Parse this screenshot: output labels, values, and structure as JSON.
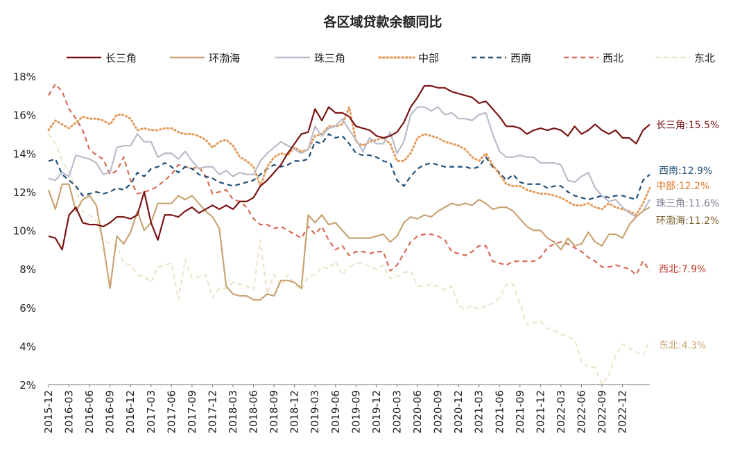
{
  "chart_data": {
    "type": "line",
    "title": "各区域贷款余额同比",
    "xlabel": "",
    "ylabel": "",
    "ylim": [
      2,
      18
    ],
    "y_ticks": [
      "2%",
      "4%",
      "6%",
      "8%",
      "10%",
      "12%",
      "14%",
      "16%",
      "18%"
    ],
    "x_ticks": [
      "2015-12",
      "2016-03",
      "2016-06",
      "2016-09",
      "2016-12",
      "2017-03",
      "2017-06",
      "2017-09",
      "2017-12",
      "2018-03",
      "2018-06",
      "2018-09",
      "2018-12",
      "2019-03",
      "2019-06",
      "2019-09",
      "2019-12",
      "2020-03",
      "2020-06",
      "2020-09",
      "2020-12",
      "2021-03",
      "2021-06",
      "2021-09",
      "2021-12",
      "2022-03",
      "2022-06",
      "2022-09",
      "2022-12"
    ],
    "x_start": "2015-12",
    "x_end": "2023-03",
    "legend_position": "top",
    "series": [
      {
        "name": "长三角",
        "color": "#7a1414",
        "dash": "solid",
        "end_label": "长三角:15.5%",
        "end_label_color": "#7a1414",
        "values": [
          9.7,
          9.6,
          9.0,
          10.8,
          11.2,
          10.4,
          10.3,
          10.3,
          10.2,
          10.4,
          10.7,
          10.7,
          10.6,
          10.8,
          12.0,
          10.4,
          9.5,
          10.8,
          10.8,
          10.7,
          11.0,
          11.2,
          10.9,
          11.1,
          11.3,
          11.1,
          11.3,
          11.1,
          11.5,
          11.5,
          11.7,
          12.3,
          12.6,
          13.0,
          13.4,
          14.0,
          14.5,
          15.0,
          15.1,
          16.3,
          15.7,
          16.4,
          16.1,
          16.1,
          15.9,
          15.4,
          15.3,
          15.2,
          14.9,
          14.8,
          14.9,
          15.1,
          15.6,
          16.4,
          16.9,
          17.5,
          17.5,
          17.4,
          17.4,
          17.2,
          17.1,
          17.0,
          16.9,
          16.6,
          16.7,
          16.3,
          15.9,
          15.4,
          15.4,
          15.3,
          15.0,
          15.2,
          15.3,
          15.2,
          15.3,
          15.2,
          14.9,
          15.4,
          15.0,
          15.2,
          15.5,
          15.2,
          15.0,
          15.2,
          14.8,
          14.8,
          14.5,
          15.2,
          15.5
        ]
      },
      {
        "name": "环渤海",
        "color": "#c8a473",
        "dash": "solid",
        "end_label": "环渤海:11.2%",
        "end_label_color": "#7a5c2e",
        "values": [
          12.1,
          11.1,
          12.4,
          12.4,
          11.0,
          11.6,
          11.8,
          11.3,
          9.3,
          7.0,
          9.7,
          9.3,
          9.9,
          11.0,
          10.0,
          10.4,
          11.4,
          11.4,
          11.4,
          11.8,
          11.6,
          11.8,
          11.4,
          11.0,
          10.7,
          10.1,
          7.1,
          6.7,
          6.6,
          6.6,
          6.4,
          6.4,
          6.7,
          6.6,
          7.4,
          7.4,
          7.3,
          7.0,
          10.8,
          10.4,
          10.8,
          10.3,
          10.4,
          10.0,
          9.6,
          9.6,
          9.6,
          9.6,
          9.7,
          9.8,
          9.4,
          9.7,
          10.4,
          10.7,
          10.6,
          10.8,
          10.7,
          11.0,
          11.2,
          11.4,
          11.3,
          11.4,
          11.3,
          11.6,
          11.4,
          11.1,
          11.2,
          11.2,
          11.0,
          10.6,
          10.2,
          10.0,
          10.0,
          9.6,
          9.4,
          9.0,
          9.6,
          9.2,
          9.3,
          9.9,
          9.4,
          9.2,
          9.8,
          9.8,
          9.6,
          10.3,
          10.7,
          11.0,
          11.2
        ]
      },
      {
        "name": "珠三角",
        "color": "#b9bcc9",
        "dash": "solid",
        "end_label": "珠三角:11.6%",
        "end_label_color": "#7c7f95",
        "values": [
          12.7,
          12.6,
          13.0,
          12.8,
          13.9,
          13.8,
          13.7,
          13.5,
          12.9,
          13.0,
          14.3,
          14.4,
          14.4,
          15.0,
          14.6,
          14.6,
          13.8,
          14.0,
          14.0,
          13.7,
          14.1,
          13.6,
          13.2,
          13.3,
          13.3,
          12.9,
          13.1,
          12.8,
          13.0,
          12.9,
          12.9,
          13.6,
          14.0,
          14.3,
          14.6,
          14.4,
          14.2,
          14.0,
          14.2,
          15.4,
          14.9,
          15.3,
          15.4,
          15.8,
          15.2,
          14.7,
          14.1,
          14.8,
          14.5,
          14.5,
          15.1,
          14.0,
          14.6,
          16.0,
          16.4,
          16.4,
          16.2,
          16.4,
          16.0,
          16.1,
          15.8,
          15.8,
          15.7,
          16.0,
          16.1,
          15.0,
          14.1,
          13.8,
          13.8,
          13.9,
          13.8,
          13.8,
          13.5,
          13.5,
          13.5,
          13.4,
          12.6,
          12.5,
          12.8,
          13.0,
          12.2,
          11.8,
          11.5,
          11.6,
          11.2,
          10.9,
          10.7,
          11.0,
          11.6
        ]
      },
      {
        "name": "中部",
        "color": "#e49a5a",
        "dash": "dotted",
        "end_label": "中部:12.2%",
        "end_label_color": "#e0792c",
        "values": [
          15.2,
          15.7,
          15.5,
          15.3,
          15.6,
          15.9,
          15.8,
          15.8,
          15.7,
          15.5,
          16.0,
          16.0,
          15.8,
          15.2,
          15.3,
          15.2,
          15.2,
          15.3,
          15.3,
          15.1,
          15.0,
          15.0,
          14.9,
          14.7,
          14.3,
          14.6,
          14.7,
          14.4,
          13.8,
          13.6,
          13.3,
          12.3,
          13.3,
          13.8,
          14.0,
          13.9,
          14.3,
          14.1,
          14.2,
          14.9,
          15.0,
          15.4,
          15.4,
          15.5,
          16.4,
          14.6,
          14.4,
          14.6,
          14.7,
          14.8,
          14.5,
          13.6,
          13.6,
          14.0,
          14.8,
          15.0,
          14.9,
          14.8,
          14.6,
          14.5,
          14.4,
          14.2,
          13.8,
          13.6,
          14.0,
          13.4,
          12.9,
          12.4,
          12.3,
          12.3,
          12.1,
          12.0,
          11.9,
          11.9,
          11.8,
          11.7,
          11.5,
          11.3,
          11.3,
          11.4,
          11.2,
          11.1,
          11.4,
          11.2,
          11.1,
          11.0,
          10.8,
          11.4,
          12.2
        ]
      },
      {
        "name": "西南",
        "color": "#1f4e79",
        "dash": "dashed",
        "end_label": "西南:12.9%",
        "end_label_color": "#1f4e79",
        "values": [
          13.6,
          13.7,
          12.9,
          12.6,
          12.3,
          11.8,
          11.9,
          12.0,
          11.9,
          12.0,
          12.2,
          12.1,
          12.4,
          13.0,
          12.8,
          13.2,
          13.3,
          13.5,
          13.3,
          13.0,
          13.3,
          13.2,
          12.9,
          12.8,
          12.7,
          12.5,
          12.4,
          12.3,
          12.4,
          12.5,
          12.6,
          12.9,
          13.2,
          13.4,
          13.3,
          13.4,
          13.6,
          13.6,
          13.7,
          14.6,
          14.5,
          15.0,
          14.8,
          14.9,
          14.5,
          14.0,
          13.9,
          13.9,
          13.8,
          13.6,
          13.5,
          12.6,
          12.3,
          12.8,
          13.2,
          13.4,
          13.5,
          13.4,
          13.3,
          13.3,
          13.3,
          13.3,
          13.2,
          13.3,
          13.8,
          13.3,
          13.0,
          12.6,
          12.9,
          12.5,
          12.4,
          12.4,
          12.4,
          12.2,
          12.3,
          12.3,
          12.0,
          11.8,
          11.7,
          11.6,
          11.7,
          11.8,
          11.7,
          11.8,
          11.8,
          11.7,
          11.6,
          12.6,
          12.9
        ]
      },
      {
        "name": "西北",
        "color": "#d96a55",
        "dash": "dashed",
        "end_label": "西北:7.9%",
        "end_label_color": "#c0392b",
        "values": [
          17.0,
          17.6,
          17.2,
          16.3,
          15.8,
          15.2,
          14.2,
          13.9,
          13.7,
          12.9,
          13.1,
          13.8,
          12.6,
          11.9,
          12.0,
          12.1,
          12.3,
          12.6,
          12.9,
          13.4,
          13.3,
          13.2,
          13.3,
          12.8,
          11.9,
          12.0,
          12.1,
          11.6,
          11.5,
          11.2,
          10.6,
          10.3,
          10.3,
          10.1,
          10.2,
          10.0,
          9.8,
          9.6,
          10.2,
          9.8,
          10.2,
          9.5,
          9.0,
          9.2,
          8.7,
          8.9,
          8.9,
          8.8,
          8.9,
          8.9,
          7.9,
          8.2,
          8.8,
          9.4,
          9.7,
          9.8,
          9.8,
          9.7,
          9.5,
          8.9,
          8.8,
          8.7,
          8.9,
          9.2,
          9.2,
          8.4,
          8.3,
          8.2,
          8.4,
          8.4,
          8.4,
          8.4,
          8.6,
          9.1,
          9.3,
          9.4,
          9.3,
          9.1,
          8.9,
          8.6,
          8.4,
          8.1,
          8.1,
          8.2,
          8.1,
          8.0,
          7.7,
          8.4,
          7.9
        ]
      },
      {
        "name": "东北",
        "color": "#efe3cb",
        "dash": "dashed",
        "end_label": "东北:4.3%",
        "end_label_color": "#c8a473",
        "values": [
          15.0,
          14.5,
          13.6,
          13.0,
          12.2,
          11.0,
          10.8,
          10.5,
          9.5,
          9.3,
          9.2,
          8.3,
          8.2,
          7.7,
          7.6,
          7.3,
          8.1,
          8.2,
          8.3,
          6.4,
          8.5,
          7.5,
          7.6,
          7.7,
          6.5,
          7.0,
          7.0,
          7.3,
          7.2,
          7.1,
          6.9,
          9.5,
          6.7,
          7.7,
          7.1,
          7.7,
          7.2,
          6.9,
          7.6,
          7.7,
          8.1,
          8.0,
          8.4,
          7.7,
          8.1,
          8.3,
          8.3,
          8.1,
          8.0,
          8.2,
          7.5,
          7.6,
          7.8,
          7.9,
          7.1,
          7.1,
          7.2,
          7.1,
          6.9,
          7.1,
          6.1,
          5.9,
          6.1,
          5.9,
          6.1,
          6.2,
          6.5,
          7.2,
          7.2,
          6.2,
          5.1,
          5.2,
          5.3,
          4.9,
          4.8,
          4.6,
          4.5,
          4.3,
          3.2,
          2.9,
          2.9,
          2.0,
          2.5,
          3.5,
          4.1,
          3.9,
          3.7,
          3.5,
          4.3
        ]
      }
    ]
  }
}
